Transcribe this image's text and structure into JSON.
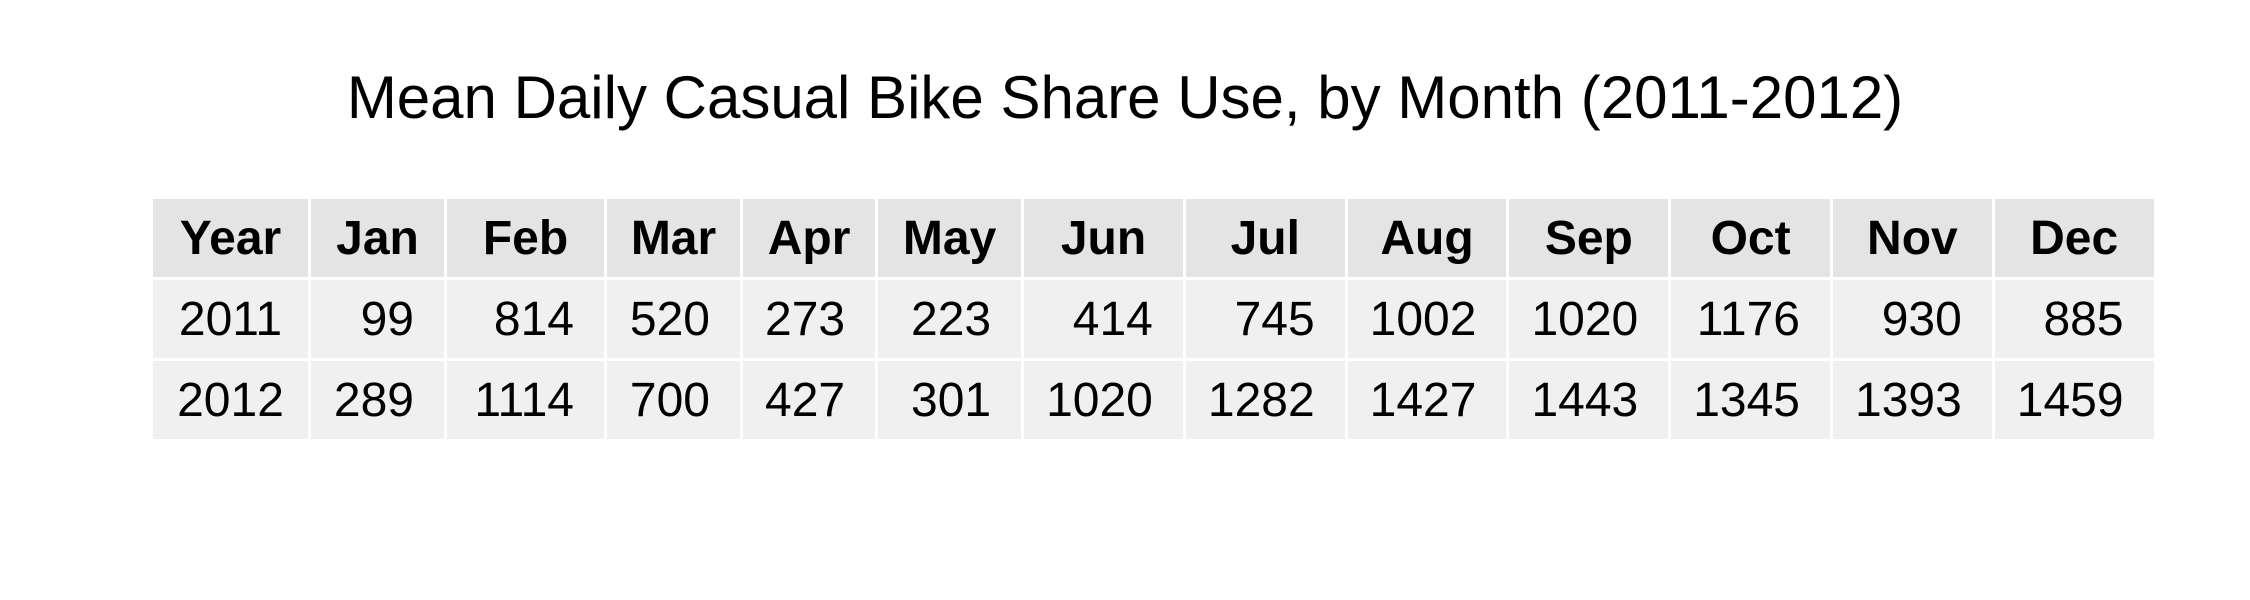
{
  "chart_data": {
    "type": "table",
    "title": "Mean Daily Casual Bike Share Use, by Month (2011-2012)",
    "columns": [
      "Year",
      "Jan",
      "Feb",
      "Mar",
      "Apr",
      "May",
      "Jun",
      "Jul",
      "Aug",
      "Sep",
      "Oct",
      "Nov",
      "Dec"
    ],
    "rows": [
      [
        "2011",
        "99",
        "814",
        "520",
        "273",
        "223",
        "414",
        "745",
        "1002",
        "1020",
        "1176",
        "930",
        "885"
      ],
      [
        "2012",
        "289",
        "1114",
        "700",
        "427",
        "301",
        "1020",
        "1282",
        "1427",
        "1443",
        "1345",
        "1393",
        "1459"
      ]
    ]
  },
  "colors": {
    "header_background": "#e4e4e4",
    "cell_background": "#f0f0f0",
    "grid_lines": "#ffffff",
    "text": "#000000"
  }
}
